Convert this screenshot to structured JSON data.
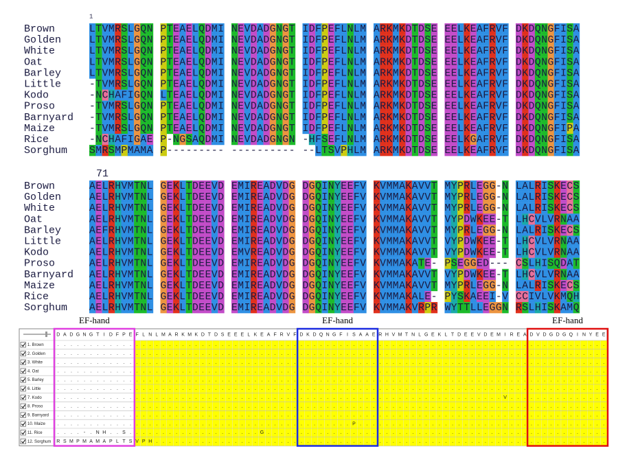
{
  "alignment": {
    "blocks": [
      {
        "position": "1",
        "rows": [
          {
            "name": "Brown",
            "segments": [
              "LTVMRSLGQN",
              "PTEAELQDMI",
              "NEVDADGNGT",
              "IDFPEFLNLM",
              "ARKMKDTDSE",
              "EELKEAFRVF",
              "DKDQNGFISA"
            ]
          },
          {
            "name": "Golden",
            "segments": [
              "LTVMRSLGQN",
              "PTEAELQDMI",
              "NEVDADGNGT",
              "IDFPEFLNLM",
              "ARKMKDTDSE",
              "EELKEAFRVF",
              "DKDQNGFISA"
            ]
          },
          {
            "name": "White",
            "segments": [
              "LTVMRSLGQN",
              "PTEAELQDMI",
              "NEVDADGNGT",
              "IDFPEFLNLM",
              "ARKMKDTDSE",
              "EELKEAFRVF",
              "DKDQNGFISA"
            ]
          },
          {
            "name": "Oat",
            "segments": [
              "LTVMRSLGQN",
              "PTEAELQDMI",
              "NEVDADGNGT",
              "IDFPEFLNLM",
              "ARKMKDTDSE",
              "EELKEAFRVF",
              "DKDQNGFISA"
            ]
          },
          {
            "name": "Barley",
            "segments": [
              "LTVMRSLGQN",
              "PTEAELQDMI",
              "NEVDADGNGT",
              "IDFPEFLNLM",
              "ARKMKDTDSE",
              "EELKEAFRVF",
              "DKDQNGFISA"
            ]
          },
          {
            "name": "Little",
            "segments": [
              "-TVMRSLGQN",
              "PTEAELQDMI",
              "NEVDADGNGT",
              "IDFPEFLNLM",
              "ARKMKDTDSE",
              "EELKEAFRVF",
              "DKDQNGFISA"
            ]
          },
          {
            "name": "Kodo",
            "segments": [
              "-NCHAFIGQN",
              "LTEAELQDMI",
              "NEVDADGNGT",
              "IDFPEFLNLM",
              "ARKMKDTDSE",
              "EELKEAFRVF",
              "DKDQNGFISA"
            ]
          },
          {
            "name": "Proso",
            "segments": [
              "-TVMRSLGQN",
              "PTEAELQDMI",
              "NEVDADGNGT",
              "IDFPEFLNLM",
              "ARKMKDTDSE",
              "EELKEAFRVF",
              "DKDQNGFISA"
            ]
          },
          {
            "name": "Barnyard",
            "segments": [
              "-TVMRSLGQN",
              "PTEAELQDMI",
              "NEVDADGNGT",
              "IDFPEFLNLM",
              "ARKMKDTDSE",
              "EELKEAFRVF",
              "DKDQNGFISA"
            ]
          },
          {
            "name": "Maize",
            "segments": [
              "-TVMRSLGQN",
              "PTEAELQDMI",
              "NEVDADGNGT",
              "IDFPEFLNLM",
              "ARKMKDTDSE",
              "EELKEAFRVF",
              "DKDQNGFIPA"
            ]
          },
          {
            "name": "Rice",
            "segments": [
              "-NCHAFIGAE",
              "P-NGSAQDMI",
              "NEVDADGNGN",
              "-HFSEFLNLM",
              "ARKMKDTDSE",
              "EELKGAFRVF",
              "DKDQNGFISA"
            ]
          },
          {
            "name": "Sorghum",
            "segments": [
              "SMRSMPMAMA",
              "P---------",
              "----------",
              "--LTSVPHLM",
              "ARKMKDTDSE",
              "EELKEAFRVF",
              "DKDQNGFISA"
            ]
          }
        ]
      },
      {
        "position": "71",
        "rows": [
          {
            "name": "Brown",
            "segments": [
              "AELRHVMTNL",
              "GEKLTDEEVD",
              "EMIREADVDG",
              "DGQINYEEFV",
              "KVMMAKAVVT",
              "MYPRLEGG-N",
              "LALRISKECS"
            ]
          },
          {
            "name": "Golden",
            "segments": [
              "AELRHVMTNL",
              "GEKLTDEEVD",
              "EMIREADVDG",
              "DGQINYEEFV",
              "KVMMAKAVVT",
              "MYPRLEGG-N",
              "LALRISKECS"
            ]
          },
          {
            "name": "White",
            "segments": [
              "AELRHVMTNL",
              "GEKLTDEEVD",
              "EMIREADVDG",
              "DGQINYEEFV",
              "KVMMAKAVVT",
              "MYPRLEGG-N",
              "LALRISKECS"
            ]
          },
          {
            "name": "Oat",
            "segments": [
              "AELRHVMTNL",
              "GEKLTDEEVD",
              "EMIREADVDG",
              "DGQINYEEFV",
              "KVMMAKAVVT",
              "VYPDWKEE-T",
              "LHCVLVRNAA"
            ]
          },
          {
            "name": "Barley",
            "segments": [
              "AEFRHVMTNL",
              "GEKLTDEEVD",
              "EMIREADVDG",
              "DGQINYEEFV",
              "KVMMAKAVVT",
              "MYPRLEGG-N",
              "LALRISKECS"
            ]
          },
          {
            "name": "Little",
            "segments": [
              "AELRHVMTNL",
              "GEKLTDEEVD",
              "EMIREADVDG",
              "DGQINYEEFV",
              "KVMMAKAVVT",
              "VYPDWKEE-T",
              "LHCVLVRNAA"
            ]
          },
          {
            "name": "Kodo",
            "segments": [
              "AELRHVMTNL",
              "GEKLTDEEVD",
              "EMVREADVDG",
              "DGQINYEEFV",
              "KVMMAKAVVT",
              "VYPDWKEE-T",
              "LHCVLVRNAA"
            ]
          },
          {
            "name": "Proso",
            "segments": [
              "AELRHVMTNL",
              "GEKLTDEEVD",
              "EMIREADVDG",
              "DGQINYEEFV",
              "KVMMAKATE-",
              "PSEGGED---",
              "CSLHISQDAT"
            ]
          },
          {
            "name": "Barnyard",
            "segments": [
              "AELRHVMTNL",
              "GEKLTDEEVD",
              "EMIREADVDG",
              "DGQINYEEFV",
              "KVMMAKAVVT",
              "VYPDWKEE-T",
              "LHCVLVRNAA"
            ]
          },
          {
            "name": "Maize",
            "segments": [
              "AELRHVMTNL",
              "GEKLTDEEVD",
              "EMIREADVDG",
              "DGQINYEEFV",
              "KVMMAKAVVT",
              "MYPRLEGG-N",
              "LALRISKECS"
            ]
          },
          {
            "name": "Rice",
            "segments": [
              "AELRHVMTNL",
              "GEKLTDEEVD",
              "EMIREADVDG",
              "DGQINYEEFV",
              "KVMMAKALE-",
              "PYSKAEEI-V",
              "CCIVLVKMQH"
            ]
          },
          {
            "name": "Sorghum",
            "segments": [
              "AELRHVMTNL",
              "GEKLTDEEVD",
              "EMIREADVDG",
              "DGQINYEEFV",
              "KVMMAKVRPR",
              "WYTTLLEGGN",
              "RSLHISKAMQ"
            ]
          }
        ]
      }
    ]
  },
  "ef_hand": {
    "labels": [
      "EF-hand",
      "EF-hand",
      "EF-hand"
    ]
  },
  "table": {
    "header": "DADGNGTIDFPEFLNLMARKMKDTDSEEELKEAFRVFDKDQNGFISAAERHVMTNLGEKLTDEEVDEMIREADVDGDGQINYEE",
    "rows": [
      {
        "label": "1. Brown",
        "cells": "...................................................................................."
      },
      {
        "label": "2. Golden",
        "cells": "...................................................................................."
      },
      {
        "label": "3. White",
        "cells": "...................................................................................."
      },
      {
        "label": "4. Oat",
        "cells": "...................................................................................."
      },
      {
        "label": "5. Barley",
        "cells": "...................................................................................."
      },
      {
        "label": "6. Little",
        "cells": "...................................................................................."
      },
      {
        "label": "7. Kodo",
        "cells": "....................................................................V..............."
      },
      {
        "label": "8. Proso",
        "cells": "...................................................................................."
      },
      {
        "label": "9. Barnyard",
        "cells": "...................................................................................."
      },
      {
        "label": "10. Maize",
        "cells": ".............................................P......................................"
      },
      {
        "label": "11. Rice",
        "cells": "....-.NH..S....................G...................................................."
      },
      {
        "label": "12. Sorghum",
        "cells": "RSMPMAMAPLTSVPH....................................................................."
      }
    ]
  }
}
